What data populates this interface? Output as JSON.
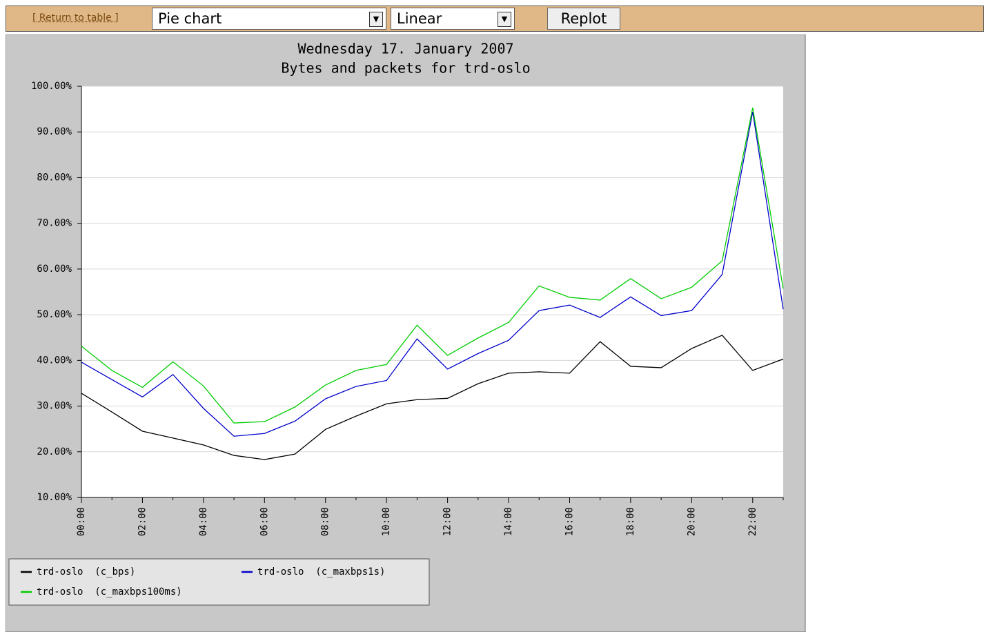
{
  "toolbar": {
    "return_link": "[ Return to table ]",
    "chart_type": "Pie chart",
    "scale": "Linear",
    "replot": "Replot"
  },
  "chart_data": {
    "type": "line",
    "title": "Wednesday 17. January 2007",
    "subtitle": "Bytes and packets for trd-oslo",
    "categories": [
      "00:00",
      null,
      "02:00",
      null,
      "04:00",
      null,
      "06:00",
      null,
      "08:00",
      null,
      "10:00",
      null,
      "12:00",
      null,
      "14:00",
      null,
      "16:00",
      null,
      "18:00",
      null,
      "20:00",
      null,
      "22:00",
      null
    ],
    "ylim": [
      10,
      100
    ],
    "yticks": [
      {
        "value": 10,
        "label": "10.00%"
      },
      {
        "value": 20,
        "label": "20.00%"
      },
      {
        "value": 30,
        "label": "30.00%"
      },
      {
        "value": 40,
        "label": "40.00%"
      },
      {
        "value": 50,
        "label": "50.00%"
      },
      {
        "value": 60,
        "label": "60.00%"
      },
      {
        "value": 70,
        "label": "70.00%"
      },
      {
        "value": 80,
        "label": "80.00%"
      },
      {
        "value": 90,
        "label": "90.00%"
      },
      {
        "value": 100,
        "label": "100.00%"
      }
    ],
    "grid": true,
    "series": [
      {
        "name": "trd-oslo  (c_bps)",
        "color": "#000000",
        "values": [
          32.8,
          28.7,
          24.5,
          23.0,
          21.5,
          19.2,
          18.3,
          19.5,
          24.9,
          27.8,
          30.5,
          31.4,
          31.7,
          34.9,
          37.2,
          37.5,
          37.2,
          44.1,
          38.7,
          38.4,
          42.6,
          45.5,
          37.8,
          40.3
        ]
      },
      {
        "name": "trd-oslo  (c_maxbps1s)",
        "color": "#0000cc",
        "values": [
          39.6,
          35.8,
          32.0,
          36.9,
          29.5,
          23.4,
          24.0,
          26.7,
          31.6,
          34.3,
          35.6,
          44.7,
          38.1,
          41.5,
          44.4,
          50.9,
          52.1,
          49.4,
          53.9,
          49.8,
          50.9,
          58.8,
          94.4,
          51.2
        ]
      },
      {
        "name": "trd-oslo  (c_maxbps100ms)",
        "color": "#00cc00",
        "values": [
          43.1,
          37.8,
          34.1,
          39.7,
          34.4,
          26.3,
          26.6,
          29.8,
          34.6,
          37.8,
          39.1,
          47.7,
          41.1,
          44.9,
          48.3,
          56.3,
          53.8,
          53.2,
          57.9,
          53.5,
          56.0,
          61.8,
          95.3,
          55.7
        ]
      }
    ]
  }
}
